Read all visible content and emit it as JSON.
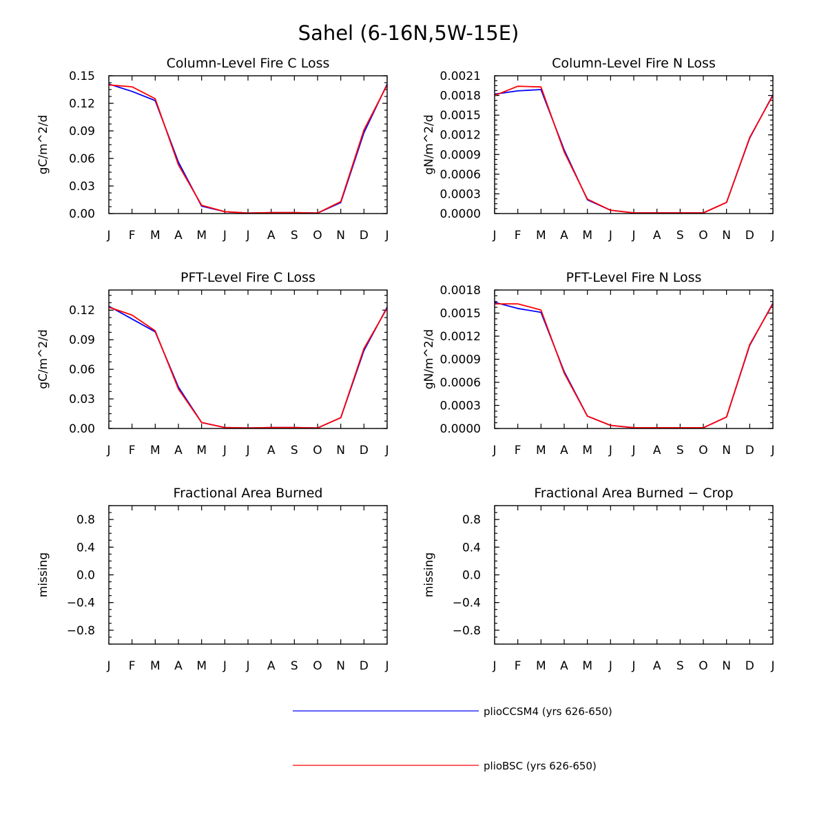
{
  "figure": {
    "title": "Sahel (6-16N,5W-15E)"
  },
  "legend": {
    "entries": [
      {
        "name": "plioCCSM4 (yrs 626-650)",
        "color": "#0000ff"
      },
      {
        "name": "plioBSC (yrs 626-650)",
        "color": "#ff0000"
      }
    ]
  },
  "chart_data": [
    {
      "type": "line",
      "title": "Column-Level Fire C Loss",
      "ylabel": "gC/m^2/d",
      "categories": [
        "J",
        "F",
        "M",
        "A",
        "M",
        "J",
        "J",
        "A",
        "S",
        "O",
        "N",
        "D",
        "J"
      ],
      "ylim": [
        0,
        0.15
      ],
      "yticks": [
        "0.00",
        "0.03",
        "0.06",
        "0.09",
        "0.12",
        "0.15"
      ],
      "series": [
        {
          "name": "plioCCSM4 (yrs 626-650)",
          "color": "#0000ff",
          "values": [
            0.141,
            0.133,
            0.123,
            0.056,
            0.008,
            0.002,
            0.0005,
            0.001,
            0.001,
            0.0005,
            0.012,
            0.088,
            0.141
          ]
        },
        {
          "name": "plioBSC (yrs 626-650)",
          "color": "#ff0000",
          "values": [
            0.14,
            0.138,
            0.125,
            0.053,
            0.009,
            0.002,
            0.0005,
            0.001,
            0.001,
            0.0005,
            0.013,
            0.091,
            0.14
          ]
        }
      ]
    },
    {
      "type": "line",
      "title": "Column-Level Fire N Loss",
      "ylabel": "gN/m^2/d",
      "categories": [
        "J",
        "F",
        "M",
        "A",
        "M",
        "J",
        "J",
        "A",
        "S",
        "O",
        "N",
        "D",
        "J"
      ],
      "ylim": [
        0,
        0.0021
      ],
      "yticks": [
        "0.0000",
        "0.0003",
        "0.0006",
        "0.0009",
        "0.0012",
        "0.0015",
        "0.0018",
        "0.0021"
      ],
      "series": [
        {
          "name": "plioCCSM4 (yrs 626-650)",
          "color": "#0000ff",
          "values": [
            0.00182,
            0.00187,
            0.00189,
            0.00097,
            0.00021,
            5e-05,
            1e-05,
            1e-05,
            1e-05,
            1e-05,
            0.00017,
            0.00115,
            0.00181
          ]
        },
        {
          "name": "plioBSC (yrs 626-650)",
          "color": "#ff0000",
          "values": [
            0.0018,
            0.00194,
            0.00193,
            0.00094,
            0.00022,
            5e-05,
            1e-05,
            1e-05,
            1e-05,
            1e-05,
            0.00017,
            0.00116,
            0.0018
          ]
        }
      ]
    },
    {
      "type": "line",
      "title": "PFT-Level Fire C Loss",
      "ylabel": "gC/m^2/d",
      "categories": [
        "J",
        "F",
        "M",
        "A",
        "M",
        "J",
        "J",
        "A",
        "S",
        "O",
        "N",
        "D",
        "J"
      ],
      "ylim": [
        0,
        0.1404
      ],
      "yticks": [
        "0.00",
        "0.03",
        "0.06",
        "0.09",
        "0.12"
      ],
      "series": [
        {
          "name": "plioCCSM4 (yrs 626-650)",
          "color": "#0000ff",
          "values": [
            0.124,
            0.111,
            0.098,
            0.042,
            0.006,
            0.001,
            0.0005,
            0.001,
            0.001,
            0.0005,
            0.011,
            0.079,
            0.123
          ]
        },
        {
          "name": "plioBSC (yrs 626-650)",
          "color": "#ff0000",
          "values": [
            0.123,
            0.115,
            0.099,
            0.04,
            0.006,
            0.001,
            0.0005,
            0.001,
            0.001,
            0.0005,
            0.011,
            0.081,
            0.122
          ]
        }
      ]
    },
    {
      "type": "line",
      "title": "PFT-Level Fire N Loss",
      "ylabel": "gN/m^2/d",
      "categories": [
        "J",
        "F",
        "M",
        "A",
        "M",
        "J",
        "J",
        "A",
        "S",
        "O",
        "N",
        "D",
        "J"
      ],
      "ylim": [
        0,
        0.0018
      ],
      "yticks": [
        "0.0000",
        "0.0003",
        "0.0006",
        "0.0009",
        "0.0012",
        "0.0015",
        "0.0018"
      ],
      "series": [
        {
          "name": "plioCCSM4 (yrs 626-650)",
          "color": "#0000ff",
          "values": [
            0.00164,
            0.00156,
            0.00151,
            0.00074,
            0.00016,
            4e-05,
            1e-05,
            1e-05,
            1e-05,
            1e-05,
            0.00015,
            0.00108,
            0.00163
          ]
        },
        {
          "name": "plioBSC (yrs 626-650)",
          "color": "#ff0000",
          "values": [
            0.00162,
            0.00162,
            0.00154,
            0.00072,
            0.00016,
            4e-05,
            1e-05,
            1e-05,
            1e-05,
            1e-05,
            0.00015,
            0.00109,
            0.00162
          ]
        }
      ]
    },
    {
      "type": "line",
      "title": "Fractional Area Burned",
      "ylabel": "missing",
      "categories": [
        "J",
        "F",
        "M",
        "A",
        "M",
        "J",
        "J",
        "A",
        "S",
        "O",
        "N",
        "D",
        "J"
      ],
      "ylim": [
        -1,
        1
      ],
      "yticks": [
        "−0.8",
        "−0.4",
        "0.0",
        "0.4",
        "0.8"
      ],
      "series": []
    },
    {
      "type": "line",
      "title": "Fractional Area Burned − Crop",
      "ylabel": "missing",
      "categories": [
        "J",
        "F",
        "M",
        "A",
        "M",
        "J",
        "J",
        "A",
        "S",
        "O",
        "N",
        "D",
        "J"
      ],
      "ylim": [
        -1,
        1
      ],
      "yticks": [
        "−0.8",
        "−0.4",
        "0.0",
        "0.4",
        "0.8"
      ],
      "series": []
    }
  ]
}
